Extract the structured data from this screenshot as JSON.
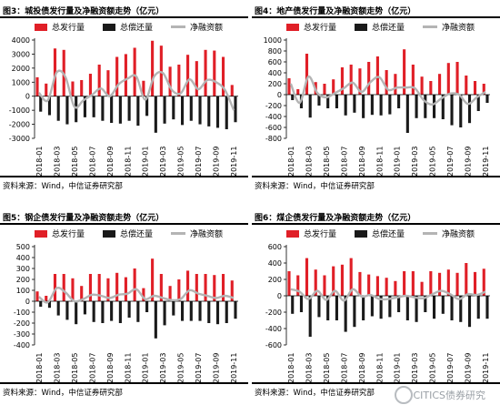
{
  "colors": {
    "issuance": "#e01f27",
    "repayment": "#1a1a1a",
    "net": "#b4b4b4",
    "axis": "#000000"
  },
  "legend": {
    "issuance": "总发行量",
    "repayment": "总偿还量",
    "net": "净融资额"
  },
  "watermark": "CITICS债券研究",
  "charts": [
    {
      "title": "图3：城投债发行量及净融资额走势（亿元）",
      "source": "资料来源：Wind，中信证券研究部",
      "chart_data": {
        "type": "bar",
        "x": [
          "2018-01",
          "2018-02",
          "2018-03",
          "2018-04",
          "2018-05",
          "2018-06",
          "2018-07",
          "2018-08",
          "2018-09",
          "2018-10",
          "2018-11",
          "2018-12",
          "2019-01",
          "2019-02",
          "2019-03",
          "2019-04",
          "2019-05",
          "2019-06",
          "2019-07",
          "2019-08",
          "2019-09",
          "2019-10",
          "2019-11"
        ],
        "xticks": [
          "2018-01",
          "2018-03",
          "2018-05",
          "2018-07",
          "2018-09",
          "2018-11",
          "2019-01",
          "2019-03",
          "2019-05",
          "2019-07",
          "2019-09",
          "2019-11"
        ],
        "series": [
          {
            "name": "总发行量",
            "values": [
              1350,
              900,
              3400,
              3300,
              1050,
              1150,
              1600,
              2250,
              1850,
              2800,
              3000,
              3450,
              1100,
              3950,
              3600,
              2100,
              2250,
              2950,
              2500,
              3300,
              3250,
              2800,
              800
            ]
          },
          {
            "name": "总偿还量",
            "values": [
              -1100,
              -1350,
              -1750,
              -2000,
              -1850,
              -1500,
              -1500,
              -1750,
              -1900,
              -1950,
              -1750,
              -2100,
              -1400,
              -2600,
              -1950,
              -1650,
              -2050,
              -1750,
              -2000,
              -2150,
              -2250,
              -2350,
              -1850
            ]
          },
          {
            "name": "净融资额",
            "values": [
              250,
              -300,
              1700,
              1350,
              -750,
              -300,
              100,
              550,
              0,
              850,
              1250,
              1400,
              -250,
              1400,
              1650,
              450,
              200,
              1200,
              500,
              1150,
              1000,
              450,
              -1000
            ]
          }
        ],
        "ylim": [
          -3000,
          4000
        ],
        "yticks": [
          -3000,
          -2000,
          -1000,
          0,
          1000,
          2000,
          3000,
          4000
        ]
      }
    },
    {
      "title": "图4：地产债发行量及净融资额走势（亿元）",
      "source": "资料来源：Wind，中信证券研究部",
      "chart_data": {
        "type": "bar",
        "x": [
          "2018-01",
          "2018-02",
          "2018-03",
          "2018-04",
          "2018-05",
          "2018-06",
          "2018-07",
          "2018-08",
          "2018-09",
          "2018-10",
          "2018-11",
          "2018-12",
          "2019-01",
          "2019-02",
          "2019-03",
          "2019-04",
          "2019-05",
          "2019-06",
          "2019-07",
          "2019-08",
          "2019-09",
          "2019-10",
          "2019-11"
        ],
        "xticks": [
          "2018-01",
          "2018-03",
          "2018-05",
          "2018-07",
          "2018-09",
          "2018-11",
          "2019-01",
          "2019-03",
          "2019-05",
          "2019-07",
          "2019-09",
          "2019-11"
        ],
        "series": [
          {
            "name": "总发行量",
            "values": [
              300,
              100,
              750,
              230,
              200,
              280,
              500,
              550,
              480,
              600,
              700,
              450,
              380,
              830,
              550,
              330,
              250,
              380,
              580,
              600,
              350,
              250,
              200
            ]
          },
          {
            "name": "总偿还量",
            "values": [
              -100,
              -250,
              -420,
              -200,
              -250,
              -250,
              -380,
              -330,
              -430,
              -370,
              -380,
              -360,
              -250,
              -700,
              -430,
              -430,
              -430,
              -450,
              -560,
              -600,
              -520,
              -300,
              -150
            ]
          },
          {
            "name": "净融资额",
            "values": [
              200,
              -150,
              330,
              30,
              -50,
              30,
              120,
              220,
              50,
              230,
              320,
              90,
              130,
              130,
              120,
              -100,
              -180,
              -70,
              20,
              0,
              -170,
              -50,
              50
            ]
          }
        ],
        "ylim": [
          -800,
          1000
        ],
        "yticks": [
          -800,
          -600,
          -400,
          -200,
          0,
          200,
          400,
          600,
          800,
          1000
        ]
      }
    },
    {
      "title": "图5：钢企债发行量及净融资额走势（亿元）",
      "source": "资料来源：Wind，中信证券研究部",
      "chart_data": {
        "type": "bar",
        "x": [
          "2018-01",
          "2018-02",
          "2018-03",
          "2018-04",
          "2018-05",
          "2018-06",
          "2018-07",
          "2018-08",
          "2018-09",
          "2018-10",
          "2018-11",
          "2018-12",
          "2019-01",
          "2019-02",
          "2019-03",
          "2019-04",
          "2019-05",
          "2019-06",
          "2019-07",
          "2019-08",
          "2019-09",
          "2019-10",
          "2019-11"
        ],
        "xticks": [
          "2018-01",
          "2018-03",
          "2018-05",
          "2018-07",
          "2018-09",
          "2018-11",
          "2019-01",
          "2019-03",
          "2019-05",
          "2019-07",
          "2019-09",
          "2019-11"
        ],
        "series": [
          {
            "name": "总发行量",
            "values": [
              90,
              50,
              250,
              250,
              210,
              140,
              250,
              250,
              210,
              260,
              220,
              300,
              120,
              390,
              250,
              140,
              200,
              280,
              250,
              250,
              240,
              250,
              190
            ]
          },
          {
            "name": "总偿还量",
            "values": [
              -50,
              -60,
              -130,
              -170,
              -210,
              -120,
              -190,
              -200,
              -180,
              -200,
              -150,
              -190,
              -100,
              -340,
              -220,
              -130,
              -180,
              -180,
              -180,
              -200,
              -210,
              -200,
              -160
            ]
          },
          {
            "name": "净融资额",
            "values": [
              40,
              -10,
              120,
              80,
              0,
              20,
              60,
              50,
              30,
              60,
              70,
              110,
              20,
              50,
              30,
              10,
              20,
              100,
              70,
              50,
              30,
              50,
              30
            ]
          }
        ],
        "ylim": [
          -400,
          500
        ],
        "yticks": [
          -400,
          -300,
          -200,
          -100,
          0,
          100,
          200,
          300,
          400,
          500
        ]
      }
    },
    {
      "title": "图6：煤企债发行量及净融资额走势（亿元）",
      "source": "资料来源：Wind，中信证券研究部",
      "chart_data": {
        "type": "bar",
        "x": [
          "2018-01",
          "2018-02",
          "2018-03",
          "2018-04",
          "2018-05",
          "2018-06",
          "2018-07",
          "2018-08",
          "2018-09",
          "2018-10",
          "2018-11",
          "2018-12",
          "2019-01",
          "2019-02",
          "2019-03",
          "2019-04",
          "2019-05",
          "2019-06",
          "2019-07",
          "2019-08",
          "2019-09",
          "2019-10",
          "2019-11"
        ],
        "xticks": [
          "2018-01",
          "2018-03",
          "2018-05",
          "2018-07",
          "2018-09",
          "2018-11",
          "2019-01",
          "2019-03",
          "2019-05",
          "2019-07",
          "2019-09",
          "2019-11"
        ],
        "series": [
          {
            "name": "总发行量",
            "values": [
              300,
              250,
              460,
              320,
              250,
              360,
              380,
              460,
              290,
              260,
              240,
              220,
              180,
              300,
              300,
              170,
              300,
              280,
              320,
              280,
              400,
              290,
              330
            ]
          },
          {
            "name": "总偿还量",
            "values": [
              -220,
              -200,
              -500,
              -260,
              -300,
              -300,
              -440,
              -380,
              -300,
              -250,
              -280,
              -260,
              -200,
              -300,
              -320,
              -200,
              -280,
              -220,
              -300,
              -320,
              -380,
              -280,
              -280
            ]
          },
          {
            "name": "净融资额",
            "values": [
              80,
              50,
              -40,
              60,
              -50,
              60,
              -60,
              80,
              -10,
              10,
              -40,
              -40,
              -20,
              0,
              -20,
              -30,
              20,
              60,
              20,
              -40,
              20,
              10,
              50
            ]
          }
        ],
        "ylim": [
          -600,
          600
        ],
        "yticks": [
          -600,
          -400,
          -200,
          0,
          200,
          400,
          600
        ]
      }
    }
  ]
}
